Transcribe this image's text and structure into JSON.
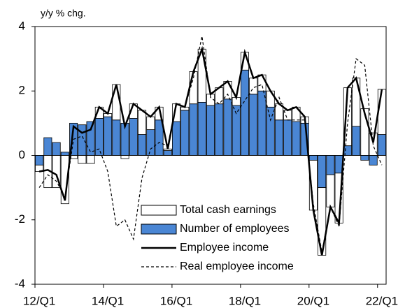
{
  "chart_data": {
    "type": "bar-line",
    "y_axis_label": "y/y % chg.",
    "categories": [
      "12/Q1",
      null,
      null,
      null,
      null,
      null,
      null,
      null,
      "14/Q1",
      null,
      null,
      null,
      null,
      null,
      null,
      null,
      "16/Q1",
      null,
      null,
      null,
      null,
      null,
      null,
      null,
      "18/Q1",
      null,
      null,
      null,
      null,
      null,
      null,
      null,
      "20/Q1",
      null,
      null,
      null,
      null,
      null,
      null,
      null,
      "22/Q1"
    ],
    "series": [
      {
        "name": "Total cash earnings",
        "kind": "bar",
        "color": "#ffffff",
        "values": [
          -0.2,
          -1.0,
          -1.0,
          -1.5,
          -0.1,
          -0.25,
          -0.25,
          0.35,
          0.1,
          1.1,
          -0.1,
          0.45,
          0.75,
          0.4,
          0.4,
          0.05,
          0.55,
          0.1,
          1.0,
          1.65,
          0.35,
          0.5,
          0.55,
          0.25,
          0.55,
          0.5,
          0.5,
          0.5,
          0.5,
          0.3,
          0.45,
          0.2,
          -1.55,
          -2.1,
          -1.0,
          -1.55,
          1.8,
          1.5,
          1.45,
          0.7,
          1.4
        ]
      },
      {
        "name": "Number of employees",
        "kind": "bar",
        "color": "#4a86d4",
        "values": [
          -0.3,
          0.55,
          0.4,
          0.1,
          1.0,
          0.95,
          1.05,
          1.15,
          1.2,
          1.1,
          1.0,
          1.15,
          0.65,
          0.8,
          1.1,
          0.15,
          1.05,
          1.4,
          1.6,
          1.65,
          1.55,
          1.6,
          1.75,
          1.55,
          2.65,
          1.9,
          2.0,
          1.5,
          1.1,
          1.1,
          1.05,
          1.0,
          -0.15,
          -1.0,
          -0.6,
          -0.55,
          0.3,
          0.9,
          -0.15,
          -0.3,
          0.65
        ]
      },
      {
        "name": "Employee income",
        "kind": "line",
        "color": "#000000",
        "values": [
          -0.5,
          -0.45,
          -0.6,
          -1.4,
          0.9,
          0.7,
          0.8,
          1.5,
          1.3,
          2.2,
          0.9,
          1.6,
          1.4,
          1.2,
          1.5,
          0.2,
          1.6,
          1.5,
          2.6,
          3.3,
          1.9,
          2.1,
          2.3,
          1.8,
          3.2,
          2.4,
          2.5,
          2.0,
          1.6,
          1.4,
          1.5,
          1.2,
          -1.7,
          -3.1,
          -1.6,
          -2.1,
          2.1,
          2.4,
          1.3,
          0.4,
          2.05
        ]
      },
      {
        "name": "Real employee income",
        "kind": "dashed",
        "color": "#000000",
        "values": [
          -1.0,
          -0.6,
          -0.8,
          -1.3,
          0.5,
          0.6,
          0.1,
          0.2,
          -0.5,
          -2.2,
          -2.0,
          -2.6,
          -0.7,
          0.2,
          0.4,
          0.3,
          1.6,
          1.5,
          2.4,
          3.7,
          1.8,
          1.6,
          1.9,
          1.3,
          1.7,
          2.1,
          2.2,
          1.1,
          1.8,
          1.1,
          1.1,
          1.1,
          -1.5,
          -3.0,
          -1.6,
          -2.2,
          1.0,
          3.0,
          2.8,
          0.3,
          -0.3
        ]
      }
    ],
    "ylim": [
      -4,
      4
    ],
    "yticks": [
      -4,
      -2,
      0,
      2,
      4
    ]
  }
}
